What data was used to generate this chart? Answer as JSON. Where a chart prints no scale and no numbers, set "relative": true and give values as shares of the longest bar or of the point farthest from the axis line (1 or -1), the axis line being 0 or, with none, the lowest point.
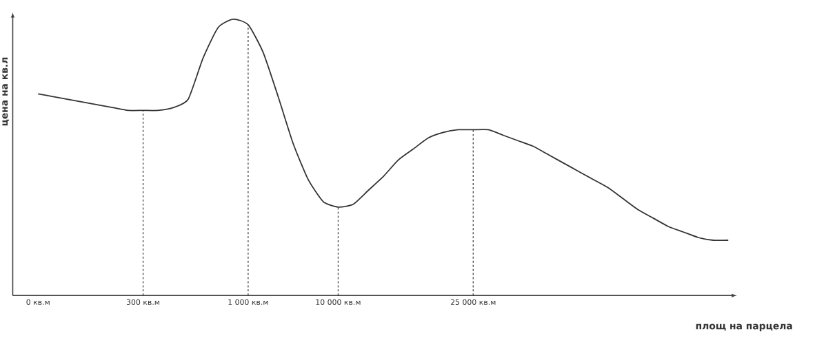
{
  "chart_data": {
    "type": "line",
    "relative": true,
    "color": "#333333",
    "xlabel": "площ на парцела",
    "ylabel": "цена на кв.л",
    "categories": [
      "0 кв.м",
      null,
      null,
      null,
      null,
      null,
      null,
      "300 кв.м",
      null,
      null,
      null,
      null,
      null,
      null,
      "1 000 кв.м",
      null,
      null,
      null,
      null,
      null,
      "10 000 кв.м",
      null,
      null,
      null,
      null,
      null,
      null,
      null,
      null,
      "25 000 кв.м",
      null,
      null,
      null,
      null,
      null,
      null,
      null,
      null,
      null,
      null,
      null,
      null,
      null,
      null,
      null,
      null,
      null
    ],
    "values": [
      0.73,
      0.72,
      0.71,
      0.7,
      0.69,
      0.68,
      0.67,
      0.67,
      0.67,
      0.68,
      0.71,
      0.86,
      0.97,
      1.0,
      0.98,
      0.88,
      0.72,
      0.55,
      0.42,
      0.34,
      0.32,
      0.33,
      0.38,
      0.43,
      0.49,
      0.53,
      0.57,
      0.59,
      0.6,
      0.6,
      0.6,
      0.58,
      0.56,
      0.54,
      0.51,
      0.48,
      0.45,
      0.42,
      0.39,
      0.35,
      0.31,
      0.28,
      0.25,
      0.23,
      0.21,
      0.2,
      0.2
    ],
    "ref_lines": [
      {
        "axis": "x",
        "value": "300 кв.м",
        "line_style": "dashed"
      },
      {
        "axis": "x",
        "value": "1 000 кв.м",
        "line_style": "dashed"
      },
      {
        "axis": "x",
        "value": "10 000 кв.м",
        "line_style": "dashed"
      },
      {
        "axis": "x",
        "value": "25 000 кв.м",
        "line_style": "dashed"
      }
    ]
  }
}
